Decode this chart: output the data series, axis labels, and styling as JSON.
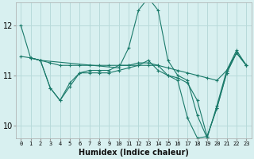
{
  "xlabel": "Humidex (Indice chaleur)",
  "background_color": "#d8f0f0",
  "grid_color": "#b8dada",
  "line_color": "#1a7a6a",
  "xlim": [
    -0.5,
    23.5
  ],
  "ylim": [
    9.75,
    12.45
  ],
  "yticks": [
    10,
    11,
    12
  ],
  "xticks": [
    0,
    1,
    2,
    3,
    4,
    5,
    6,
    7,
    8,
    9,
    10,
    11,
    12,
    13,
    14,
    15,
    16,
    17,
    18,
    19,
    20,
    21,
    22,
    23
  ],
  "lines": [
    {
      "x": [
        0,
        1,
        2,
        10,
        11,
        12,
        13,
        14,
        15,
        16,
        17,
        18,
        19,
        20,
        21,
        22,
        23
      ],
      "y": [
        12.0,
        11.35,
        11.3,
        11.15,
        11.55,
        12.3,
        12.55,
        12.3,
        11.3,
        11.0,
        10.9,
        10.2,
        9.75,
        10.4,
        11.1,
        11.5,
        11.2
      ]
    },
    {
      "x": [
        1,
        2,
        3,
        4,
        5,
        6,
        7,
        8,
        9,
        10,
        11,
        12,
        13,
        14,
        15,
        16,
        17,
        18,
        19,
        20,
        21,
        22,
        23
      ],
      "y": [
        11.35,
        11.3,
        11.25,
        11.2,
        11.2,
        11.2,
        11.2,
        11.2,
        11.2,
        11.2,
        11.2,
        11.2,
        11.2,
        11.2,
        11.15,
        11.1,
        11.05,
        11.0,
        10.95,
        10.9,
        11.1,
        11.45,
        11.2
      ]
    },
    {
      "x": [
        1,
        2,
        3,
        4,
        5,
        6,
        7,
        8,
        9,
        10,
        11,
        12,
        13,
        14,
        15,
        16,
        17,
        18,
        19,
        20,
        21,
        22,
        23
      ],
      "y": [
        11.35,
        11.3,
        10.75,
        10.5,
        10.85,
        11.05,
        11.1,
        11.1,
        11.1,
        11.2,
        11.2,
        11.25,
        11.25,
        11.2,
        11.0,
        10.95,
        10.85,
        10.5,
        9.78,
        10.35,
        11.05,
        11.45,
        11.2
      ]
    },
    {
      "x": [
        0,
        1,
        2,
        3,
        4,
        5,
        6,
        7,
        8,
        9,
        10,
        11,
        12,
        13,
        14,
        15,
        16,
        17,
        18,
        19,
        20,
        21,
        22,
        23
      ],
      "y": [
        11.38,
        11.35,
        11.3,
        10.75,
        10.5,
        10.78,
        11.05,
        11.05,
        11.05,
        11.05,
        11.1,
        11.15,
        11.2,
        11.3,
        11.1,
        11.0,
        10.9,
        10.15,
        9.75,
        9.78,
        10.35,
        11.05,
        11.45,
        11.2
      ]
    }
  ]
}
